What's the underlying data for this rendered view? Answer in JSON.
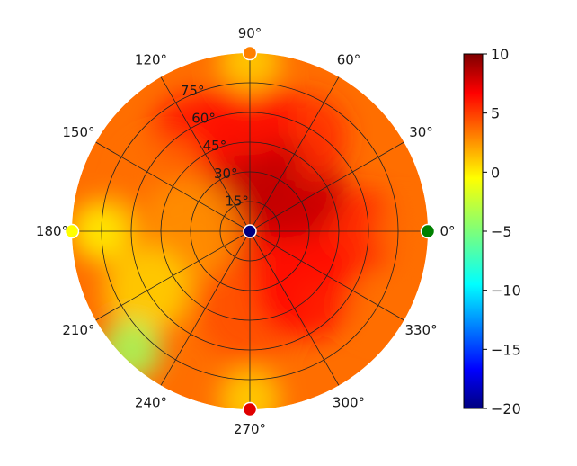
{
  "chart_data": {
    "type": "heatmap",
    "projection": "polar",
    "title": "",
    "angle_ticks": [
      "0°",
      "30°",
      "60°",
      "90°",
      "120°",
      "150°",
      "180°",
      "210°",
      "240°",
      "270°",
      "300°",
      "330°"
    ],
    "radial_ticks": [
      "15°",
      "30°",
      "45°",
      "60°",
      "75°"
    ],
    "angle_tick_values": [
      0,
      30,
      60,
      90,
      120,
      150,
      180,
      210,
      240,
      270,
      300,
      330
    ],
    "radial_tick_values": [
      15,
      30,
      45,
      60,
      75
    ],
    "rlim": [
      0,
      90
    ],
    "grid": true,
    "colormap": "jet",
    "colorbar": {
      "ticks": [
        "10",
        "5",
        "0",
        "−5",
        "−10",
        "−15",
        "−20"
      ],
      "tick_values": [
        10,
        5,
        0,
        -5,
        -10,
        -15,
        -20
      ],
      "range": [
        -20,
        10
      ],
      "placement": "right"
    },
    "field": {
      "description_units": "value vs elevation angle (radius) and azimuth (angle)",
      "samples": [
        {
          "angle": 0,
          "radius": 10,
          "value": 7
        },
        {
          "angle": 0,
          "radius": 30,
          "value": 6
        },
        {
          "angle": 0,
          "radius": 55,
          "value": 5
        },
        {
          "angle": 0,
          "radius": 80,
          "value": 3
        },
        {
          "angle": 45,
          "radius": 30,
          "value": 8
        },
        {
          "angle": 60,
          "radius": 55,
          "value": 5
        },
        {
          "angle": 90,
          "radius": 30,
          "value": 8
        },
        {
          "angle": 90,
          "radius": 60,
          "value": 6
        },
        {
          "angle": 90,
          "radius": 85,
          "value": 0
        },
        {
          "angle": 120,
          "radius": 55,
          "value": 6
        },
        {
          "angle": 150,
          "radius": 50,
          "value": 3
        },
        {
          "angle": 180,
          "radius": 30,
          "value": 2
        },
        {
          "angle": 180,
          "radius": 75,
          "value": -1
        },
        {
          "angle": 210,
          "radius": 60,
          "value": 0
        },
        {
          "angle": 225,
          "radius": 85,
          "value": -4
        },
        {
          "angle": 270,
          "radius": 40,
          "value": 4
        },
        {
          "angle": 270,
          "radius": 85,
          "value": 0
        },
        {
          "angle": 315,
          "radius": 40,
          "value": 6
        },
        {
          "angle": 330,
          "radius": 75,
          "value": 3
        }
      ]
    },
    "markers": [
      {
        "angle": 0,
        "value": -10,
        "color": "#008000"
      },
      {
        "angle": 90,
        "value": 2,
        "color": "#ff8000"
      },
      {
        "angle": 180,
        "value": 0,
        "color": "#ffff00"
      },
      {
        "angle": 270,
        "value": 8,
        "color": "#e00000"
      },
      {
        "center": true,
        "value": -20,
        "color": "#000080"
      }
    ]
  }
}
